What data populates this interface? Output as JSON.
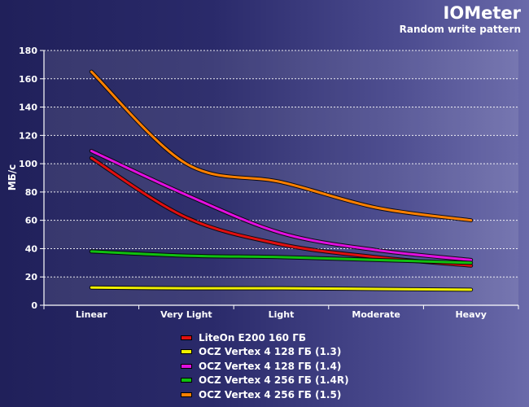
{
  "chart_data": {
    "type": "line",
    "title": "IOMeter",
    "subtitle": "Random write pattern",
    "ylabel": "МБ/с",
    "xlabel": "",
    "categories": [
      "Linear",
      "Very Light",
      "Light",
      "Moderate",
      "Heavy"
    ],
    "ylim": [
      0,
      180
    ],
    "yticks": [
      0,
      20,
      40,
      60,
      80,
      100,
      120,
      140,
      160,
      180
    ],
    "grid": true,
    "legend_position": "bottom",
    "series": [
      {
        "name": "LiteOn E200 160 ГБ",
        "color": "#e01010",
        "values": [
          104,
          62,
          43,
          34,
          28
        ]
      },
      {
        "name": "OCZ Vertex 4 128 ГБ (1.3)",
        "color": "#f0f000",
        "values": [
          12.5,
          12,
          12,
          11.5,
          11
        ]
      },
      {
        "name": "OCZ Vertex 4 128 ГБ (1.4)",
        "color": "#e010e0",
        "values": [
          109,
          78,
          51,
          39,
          32
        ]
      },
      {
        "name": "OCZ Vertex 4 256 ГБ (1.4R)",
        "color": "#10c010",
        "values": [
          38,
          35,
          34,
          32,
          30
        ]
      },
      {
        "name": "OCZ Vertex 4 256 ГБ (1.5)",
        "color": "#ff8000",
        "values": [
          165,
          100,
          87,
          69,
          60
        ]
      }
    ]
  }
}
